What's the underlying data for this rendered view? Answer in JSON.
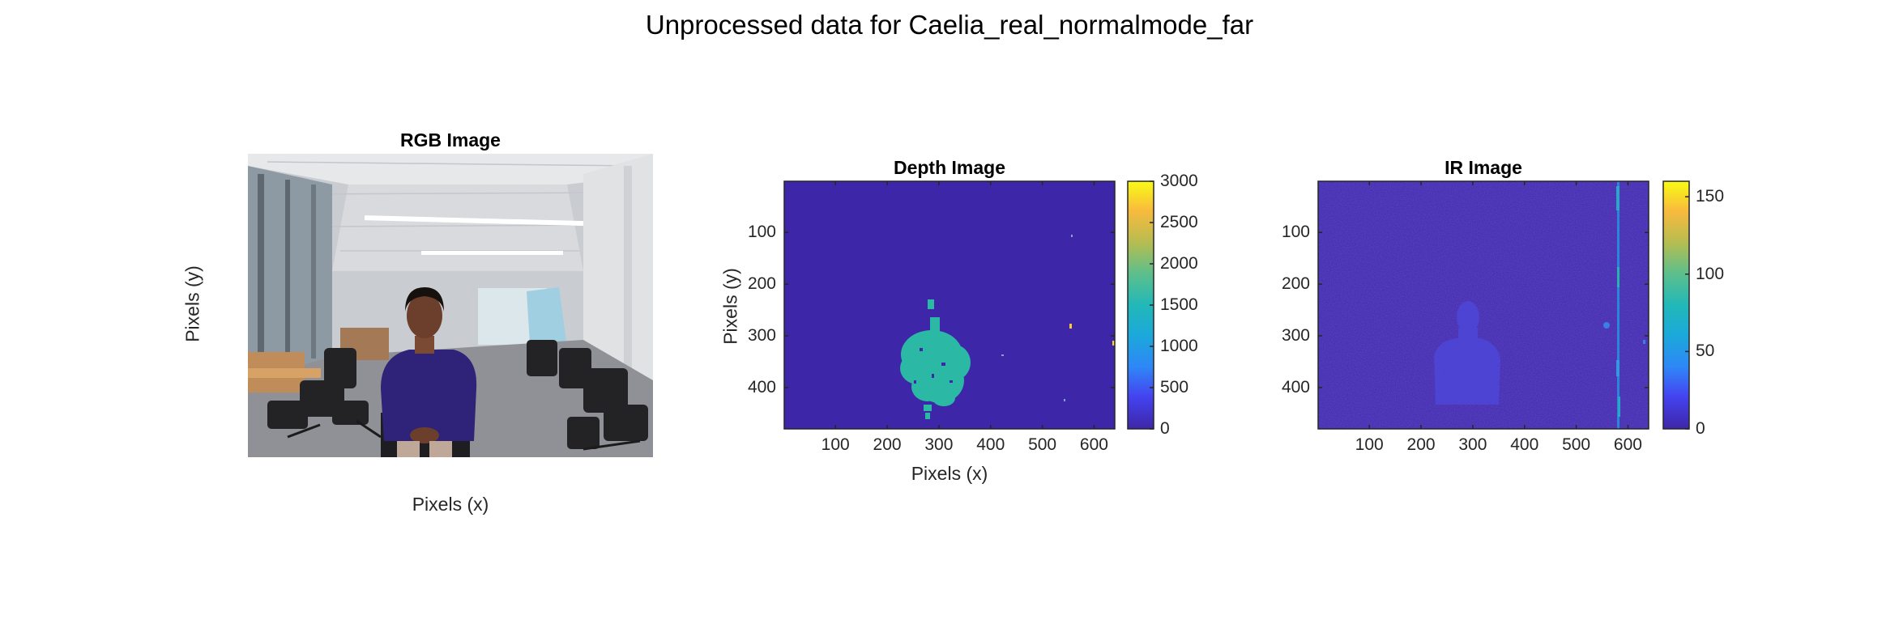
{
  "figure": {
    "suptitle": "Unprocessed data for Caelia_real_normalmode_far"
  },
  "chart_data": [
    {
      "type": "image",
      "title": "RGB Image",
      "xlabel": "Pixels (x)",
      "ylabel": "Pixels (y)",
      "axis_ticks_visible": false,
      "image_description_kind": "photograph"
    },
    {
      "type": "heatmap",
      "title": "Depth Image",
      "xlabel": "Pixels (x)",
      "ylabel": "Pixels (y)",
      "xlim": [
        1,
        640
      ],
      "ylim": [
        1,
        480
      ],
      "x_ticks": [
        100,
        200,
        300,
        400,
        500,
        600
      ],
      "y_ticks": [
        100,
        200,
        300,
        400
      ],
      "colormap": "parula",
      "clim": [
        0,
        3000
      ],
      "colorbar_ticks": [
        0,
        500,
        1000,
        1500,
        2000,
        2500,
        3000
      ],
      "background_value": 0,
      "blob": {
        "center_x": 297,
        "center_y": 340,
        "value": 1700
      },
      "colors": {
        "low": "#3e26a8",
        "mid": "#2ab6ab",
        "high": "#f9fb15"
      }
    },
    {
      "type": "heatmap",
      "title": "IR Image",
      "xlabel": "",
      "ylabel": "",
      "xlim": [
        1,
        640
      ],
      "ylim": [
        1,
        480
      ],
      "x_ticks": [
        100,
        200,
        300,
        400,
        500,
        600
      ],
      "y_ticks": [
        100,
        200,
        300,
        400
      ],
      "colormap": "parula",
      "clim": [
        0,
        160
      ],
      "colorbar_ticks": [
        0,
        50,
        100,
        150
      ],
      "bright_column_x": 578,
      "colors": {
        "low": "#3e26a8",
        "mid": "#2ab6ab",
        "high": "#f9fb15"
      }
    }
  ]
}
